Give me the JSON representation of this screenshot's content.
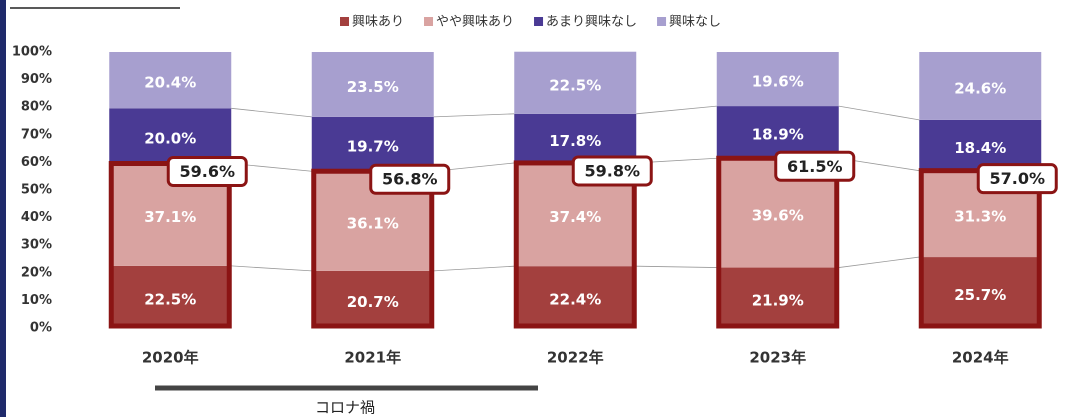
{
  "chart_data": {
    "type": "stacked_bar",
    "categories": [
      "2020年",
      "2021年",
      "2022年",
      "2023年",
      "2024年"
    ],
    "series": [
      {
        "name": "興味あり",
        "color": "#a3403e",
        "values": [
          22.5,
          20.7,
          22.4,
          21.9,
          25.7
        ],
        "value_labels": [
          "22.5%",
          "20.7%",
          "22.4%",
          "21.9%",
          "25.7%"
        ]
      },
      {
        "name": "やや興味あり",
        "color": "#d9a3a1",
        "values": [
          37.1,
          36.1,
          37.4,
          39.6,
          31.3
        ],
        "value_labels": [
          "37.1%",
          "36.1%",
          "37.4%",
          "39.6%",
          "31.3%"
        ]
      },
      {
        "name": "あまり興味なし",
        "color": "#4a3a94",
        "values": [
          20.0,
          19.7,
          17.8,
          18.9,
          18.4
        ],
        "value_labels": [
          "20.0%",
          "19.7%",
          "17.8%",
          "18.9%",
          "18.4%"
        ]
      },
      {
        "name": "興味なし",
        "color": "#a79fcf",
        "values": [
          20.4,
          23.5,
          22.5,
          19.6,
          24.6
        ],
        "value_labels": [
          "20.4%",
          "23.5%",
          "22.5%",
          "19.6%",
          "24.6%"
        ]
      }
    ],
    "callouts": {
      "color": "#8b1414",
      "values": [
        59.6,
        56.8,
        59.8,
        61.5,
        57.0
      ],
      "value_labels": [
        "59.6%",
        "56.8%",
        "59.8%",
        "61.5%",
        "57.0%"
      ]
    },
    "annotation": "コロナ禍",
    "ylim": [
      0,
      100
    ],
    "yticks": [
      {
        "value": 0,
        "label": "0%"
      },
      {
        "value": 10,
        "label": "10%"
      },
      {
        "value": 20,
        "label": "20%"
      },
      {
        "value": 30,
        "label": "30%"
      },
      {
        "value": 40,
        "label": "40%"
      },
      {
        "value": 50,
        "label": "50%"
      },
      {
        "value": 60,
        "label": "60%"
      },
      {
        "value": 70,
        "label": "70%"
      },
      {
        "value": 80,
        "label": "80%"
      },
      {
        "value": 90,
        "label": "90%"
      },
      {
        "value": 100,
        "label": "100%"
      }
    ],
    "grid": false,
    "legend": "top"
  }
}
